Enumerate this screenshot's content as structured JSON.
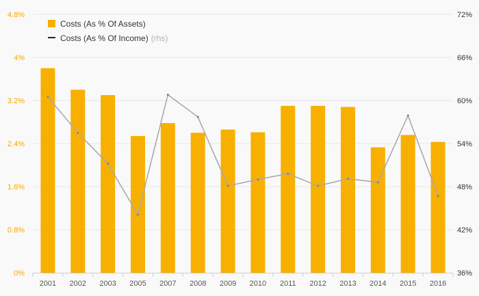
{
  "chart_data": {
    "type": "bar",
    "categories": [
      "2001",
      "2002",
      "2003",
      "2005",
      "2007",
      "2008",
      "2009",
      "2010",
      "2011",
      "2012",
      "2013",
      "2014",
      "2015",
      "2016"
    ],
    "series": [
      {
        "name": "Costs (As % Of Assets)",
        "type": "bar",
        "axis": "left",
        "color": "#f8b000",
        "values": [
          3.8,
          3.4,
          3.3,
          2.54,
          2.78,
          2.6,
          2.66,
          2.61,
          3.1,
          3.1,
          3.08,
          2.33,
          2.56,
          2.43
        ]
      },
      {
        "name": "Costs (As % Of Income)",
        "name_suffix": "(rhs)",
        "type": "line",
        "axis": "right",
        "color": "#aaaaaa",
        "legend_color": "#222222",
        "values": [
          60.5,
          55.5,
          51.2,
          44.1,
          60.8,
          57.7,
          48.1,
          49.0,
          49.8,
          48.1,
          49.1,
          48.6,
          57.9,
          46.7
        ]
      }
    ],
    "y_left": {
      "ylim": [
        0,
        4.8
      ],
      "ticks": [
        0,
        0.8,
        1.6,
        2.4,
        3.2,
        4,
        4.8
      ],
      "tick_labels": [
        "0%",
        "0.8%",
        "1.6%",
        "2.4%",
        "3.2%",
        "4%",
        "4.8%"
      ],
      "color": "#f5a800"
    },
    "y_right": {
      "ylim": [
        36,
        72
      ],
      "ticks": [
        36,
        42,
        48,
        54,
        60,
        66,
        72
      ],
      "tick_labels": [
        "36%",
        "42%",
        "48%",
        "54%",
        "60%",
        "66%",
        "72%"
      ],
      "color": "#333333"
    },
    "grid": true,
    "legend_position": "top-left",
    "title": "",
    "xlabel": "",
    "ylabel": ""
  }
}
